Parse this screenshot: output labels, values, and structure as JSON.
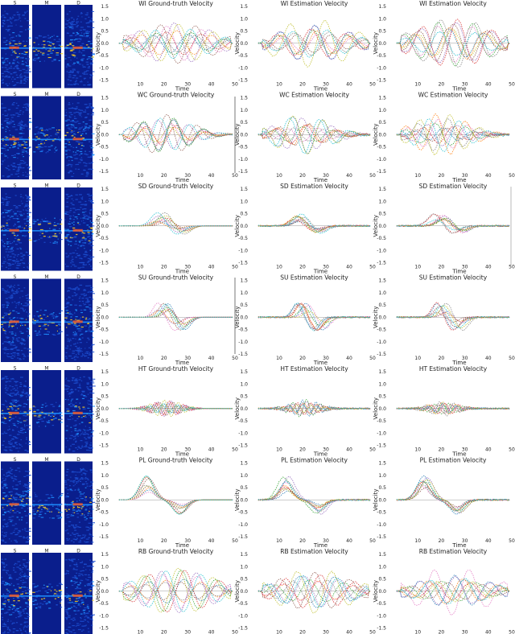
{
  "spectrogram_labels": [
    "S",
    "M",
    "D"
  ],
  "spectrogram_colors": {
    "low": "#0a1e8c",
    "mid": "#1e90ff",
    "high": "#ffd21e",
    "peak": "#ff5a1e"
  },
  "series_colors": [
    "#1f77b4",
    "#ff7f0e",
    "#2ca02c",
    "#d62728",
    "#9467bd",
    "#8c564b",
    "#e377c2",
    "#7f7f7f",
    "#bcbd22",
    "#17becf"
  ],
  "common_axes": {
    "xlabel": "Time",
    "ylabel": "Velocity",
    "xlim": [
      0,
      50
    ],
    "ylim": [
      -1.5,
      1.5
    ],
    "xticks": [
      10,
      20,
      30,
      40,
      50
    ],
    "yticks": [
      "1.5",
      "1.0",
      "0.5",
      "0.0",
      "-0.5",
      "-1.0",
      "-1.5"
    ]
  },
  "chart_data": [
    {
      "type": "line",
      "title": "WI Ground-truth Velocity",
      "pattern": "oscillation"
    },
    {
      "type": "line",
      "title": "WI Estimation Velocity",
      "pattern": "oscillation"
    },
    {
      "type": "line",
      "title": "WI Estimation Velocity",
      "pattern": "oscillation"
    },
    {
      "type": "line",
      "title": "WC Ground-truth Velocity",
      "pattern": "damped"
    },
    {
      "type": "line",
      "title": "WC Estimation Velocity",
      "pattern": "damped"
    },
    {
      "type": "line",
      "title": "WC Estimation Velocity",
      "pattern": "damped"
    },
    {
      "type": "line",
      "title": "SD Ground-truth Velocity",
      "pattern": "pulse-up"
    },
    {
      "type": "line",
      "title": "SD Estimation Velocity",
      "pattern": "pulse-up"
    },
    {
      "type": "line",
      "title": "SD Estimation Velocity",
      "pattern": "pulse-up"
    },
    {
      "type": "line",
      "title": "SU Ground-truth Velocity",
      "pattern": "pulse-down"
    },
    {
      "type": "line",
      "title": "SU Estimation Velocity",
      "pattern": "pulse-down"
    },
    {
      "type": "line",
      "title": "SU Estimation Velocity",
      "pattern": "pulse-down"
    },
    {
      "type": "line",
      "title": "HT Ground-truth Velocity",
      "pattern": "small"
    },
    {
      "type": "line",
      "title": "HT Estimation Velocity",
      "pattern": "small"
    },
    {
      "type": "line",
      "title": "HT Estimation Velocity",
      "pattern": "small"
    },
    {
      "type": "line",
      "title": "PL Ground-truth Velocity",
      "pattern": "pulse-big"
    },
    {
      "type": "line",
      "title": "PL Estimation Velocity",
      "pattern": "pulse-big"
    },
    {
      "type": "line",
      "title": "PL Estimation Velocity",
      "pattern": "pulse-big"
    },
    {
      "type": "line",
      "title": "RB Ground-truth Velocity",
      "pattern": "oscillation"
    },
    {
      "type": "line",
      "title": "RB Estimation Velocity",
      "pattern": "oscillation"
    },
    {
      "type": "line",
      "title": "RB Estimation Velocity",
      "pattern": "oscillation"
    }
  ]
}
